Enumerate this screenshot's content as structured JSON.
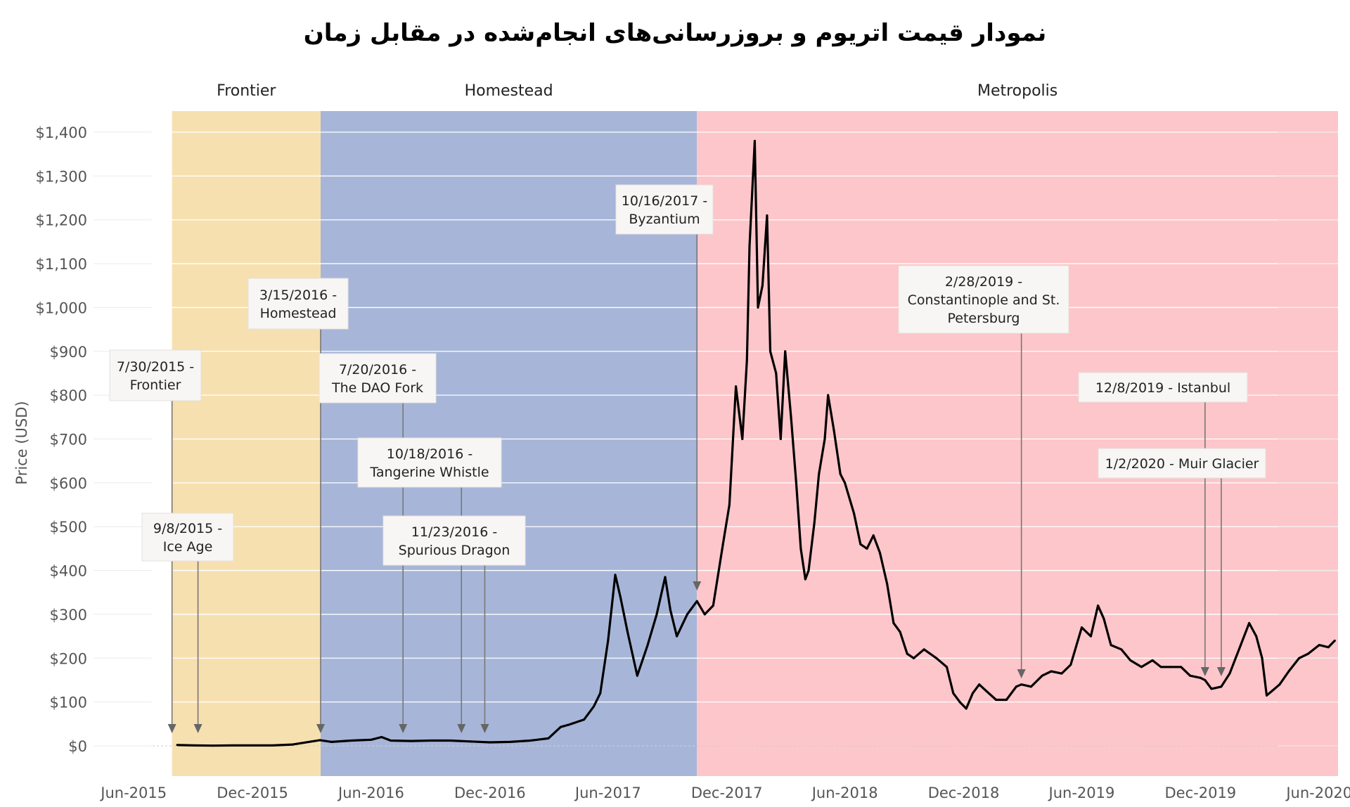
{
  "chart_data": {
    "type": "line",
    "title": "نمودار قیمت اتریوم و بروزرسانی‌های انجام‌شده در مقابل زمان",
    "xlabel": "",
    "ylabel": "Price (USD)",
    "ylim": [
      -70,
      1400
    ],
    "xlim": [
      "2015-03-31",
      "2020-06-30"
    ],
    "y_ticks": [
      0,
      100,
      200,
      300,
      400,
      500,
      600,
      700,
      800,
      900,
      1000,
      1100,
      1200,
      1300,
      1400
    ],
    "y_tick_labels": [
      "$0",
      "$100",
      "$200",
      "$300",
      "$400",
      "$500",
      "$600",
      "$700",
      "$800",
      "$900",
      "$1,000",
      "$1,100",
      "$1,200",
      "$1,300",
      "$1,400"
    ],
    "x_ticks": [
      "2015-06-01",
      "2015-12-01",
      "2016-06-01",
      "2016-12-01",
      "2017-06-01",
      "2017-12-01",
      "2018-06-01",
      "2018-12-01",
      "2019-06-01",
      "2019-12-01",
      "2020-06-01"
    ],
    "x_tick_labels": [
      "Jun-2015",
      "Dec-2015",
      "Jun-2016",
      "Dec-2016",
      "Jun-2017",
      "Dec-2017",
      "Jun-2018",
      "Dec-2018",
      "Jun-2019",
      "Dec-2019",
      "Jun-2020"
    ],
    "grid": true,
    "phases": [
      {
        "name": "Frontier",
        "start": "2015-07-30",
        "end": "2016-03-15",
        "color": "#f7e0b0"
      },
      {
        "name": "Homestead",
        "start": "2016-03-15",
        "end": "2017-10-16",
        "color": "#a7b6d8"
      },
      {
        "name": "Metropolis",
        "start": "2017-10-16",
        "end": "2020-06-30",
        "color": "#fdc6ca"
      }
    ],
    "series": [
      {
        "color": "#000000",
        "x": [
          "2015-08-07",
          "2015-09-01",
          "2015-10-01",
          "2015-11-01",
          "2015-12-01",
          "2016-01-01",
          "2016-02-01",
          "2016-03-01",
          "2016-03-14",
          "2016-04-01",
          "2016-05-01",
          "2016-06-01",
          "2016-06-17",
          "2016-07-01",
          "2016-08-01",
          "2016-09-01",
          "2016-10-01",
          "2016-11-01",
          "2016-12-01",
          "2017-01-01",
          "2017-02-01",
          "2017-03-01",
          "2017-03-20",
          "2017-04-01",
          "2017-04-25",
          "2017-05-10",
          "2017-05-20",
          "2017-06-01",
          "2017-06-12",
          "2017-06-20",
          "2017-07-01",
          "2017-07-16",
          "2017-08-01",
          "2017-08-15",
          "2017-08-28",
          "2017-09-05",
          "2017-09-15",
          "2017-10-01",
          "2017-10-16",
          "2017-10-28",
          "2017-11-10",
          "2017-11-25",
          "2017-12-05",
          "2017-12-15",
          "2017-12-25",
          "2018-01-01",
          "2018-01-05",
          "2018-01-13",
          "2018-01-18",
          "2018-01-25",
          "2018-02-01",
          "2018-02-06",
          "2018-02-15",
          "2018-02-22",
          "2018-03-01",
          "2018-03-10",
          "2018-03-18",
          "2018-03-25",
          "2018-04-01",
          "2018-04-06",
          "2018-04-15",
          "2018-04-22",
          "2018-05-01",
          "2018-05-06",
          "2018-05-15",
          "2018-05-25",
          "2018-06-01",
          "2018-06-15",
          "2018-06-25",
          "2018-07-05",
          "2018-07-15",
          "2018-07-25",
          "2018-08-05",
          "2018-08-15",
          "2018-08-25",
          "2018-09-05",
          "2018-09-15",
          "2018-10-01",
          "2018-10-20",
          "2018-11-05",
          "2018-11-15",
          "2018-11-25",
          "2018-12-05",
          "2018-12-15",
          "2018-12-25",
          "2019-01-05",
          "2019-01-20",
          "2019-02-05",
          "2019-02-20",
          "2019-02-28",
          "2019-03-15",
          "2019-04-01",
          "2019-04-15",
          "2019-05-01",
          "2019-05-15",
          "2019-06-01",
          "2019-06-15",
          "2019-06-26",
          "2019-07-05",
          "2019-07-16",
          "2019-08-01",
          "2019-08-15",
          "2019-09-01",
          "2019-09-18",
          "2019-10-01",
          "2019-10-15",
          "2019-11-01",
          "2019-11-15",
          "2019-12-01",
          "2019-12-08",
          "2019-12-18",
          "2020-01-02",
          "2020-01-15",
          "2020-02-01",
          "2020-02-14",
          "2020-02-25",
          "2020-03-05",
          "2020-03-12",
          "2020-03-20",
          "2020-04-01",
          "2020-04-15",
          "2020-05-01",
          "2020-05-15",
          "2020-06-01",
          "2020-06-15",
          "2020-06-25"
        ],
        "y": [
          2,
          1,
          0.5,
          1,
          0.9,
          1,
          3,
          10,
          13,
          9,
          12,
          14,
          20,
          12,
          11,
          12,
          12,
          10,
          8,
          9,
          12,
          17,
          43,
          48,
          60,
          90,
          120,
          240,
          390,
          340,
          260,
          160,
          230,
          300,
          385,
          310,
          250,
          300,
          330,
          300,
          320,
          460,
          550,
          820,
          700,
          880,
          1140,
          1380,
          1000,
          1050,
          1210,
          900,
          850,
          700,
          900,
          750,
          600,
          450,
          380,
          400,
          510,
          620,
          700,
          800,
          720,
          620,
          600,
          530,
          460,
          450,
          480,
          440,
          370,
          280,
          260,
          210,
          200,
          220,
          200,
          180,
          120,
          100,
          85,
          120,
          140,
          125,
          105,
          105,
          135,
          140,
          135,
          160,
          170,
          165,
          185,
          270,
          250,
          320,
          290,
          230,
          220,
          195,
          180,
          195,
          180,
          180,
          180,
          160,
          155,
          150,
          130,
          135,
          165,
          230,
          280,
          250,
          200,
          115,
          125,
          140,
          170,
          200,
          210,
          230,
          225,
          240
        ]
      }
    ],
    "annotations": [
      {
        "date": "2015-07-30",
        "lines": [
          "7/30/2015 -",
          "Frontier"
        ]
      },
      {
        "date": "2015-09-08",
        "lines": [
          "9/8/2015 -",
          "Ice Age"
        ]
      },
      {
        "date": "2016-03-15",
        "lines": [
          "3/15/2016 -",
          "Homestead"
        ]
      },
      {
        "date": "2016-07-20",
        "lines": [
          "7/20/2016 -",
          "The DAO Fork"
        ]
      },
      {
        "date": "2016-10-18",
        "lines": [
          "10/18/2016 -",
          "Tangerine Whistle"
        ]
      },
      {
        "date": "2016-11-23",
        "lines": [
          "11/23/2016 -",
          "Spurious Dragon"
        ]
      },
      {
        "date": "2017-10-16",
        "lines": [
          "10/16/2017 -",
          "Byzantium"
        ]
      },
      {
        "date": "2019-02-28",
        "lines": [
          "2/28/2019 -",
          "Constantinople and St.",
          "Petersburg"
        ]
      },
      {
        "date": "2019-12-08",
        "lines": [
          "12/8/2019 - Istanbul"
        ]
      },
      {
        "date": "2020-01-02",
        "lines": [
          "1/2/2020 - Muir Glacier"
        ]
      }
    ]
  }
}
